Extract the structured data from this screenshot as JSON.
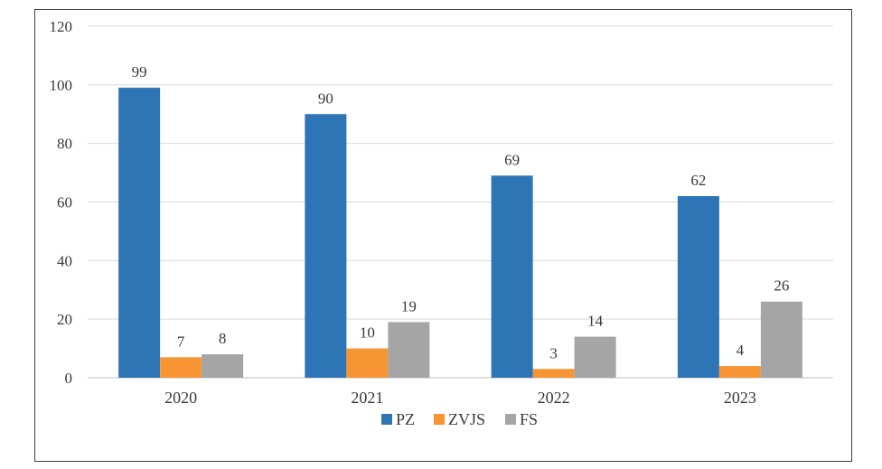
{
  "chart_data": {
    "type": "bar",
    "title": "",
    "xlabel": "",
    "ylabel": "",
    "categories": [
      "2020",
      "2021",
      "2022",
      "2023"
    ],
    "series": [
      {
        "name": "PZ",
        "color": "#2E75B6",
        "values": [
          99,
          90,
          69,
          62
        ]
      },
      {
        "name": "ZVJS",
        "color": "#F79433",
        "values": [
          7,
          10,
          3,
          4
        ]
      },
      {
        "name": "FS",
        "color": "#A5A5A5",
        "values": [
          8,
          19,
          14,
          26
        ]
      }
    ],
    "ylim": [
      0,
      120
    ],
    "yticks": [
      0,
      20,
      40,
      60,
      80,
      100,
      120
    ],
    "grid": true,
    "legend": "bottom-center",
    "data_labels": true,
    "gridline_color": "#d9d9d9",
    "text_color": "#3a3a3a"
  }
}
